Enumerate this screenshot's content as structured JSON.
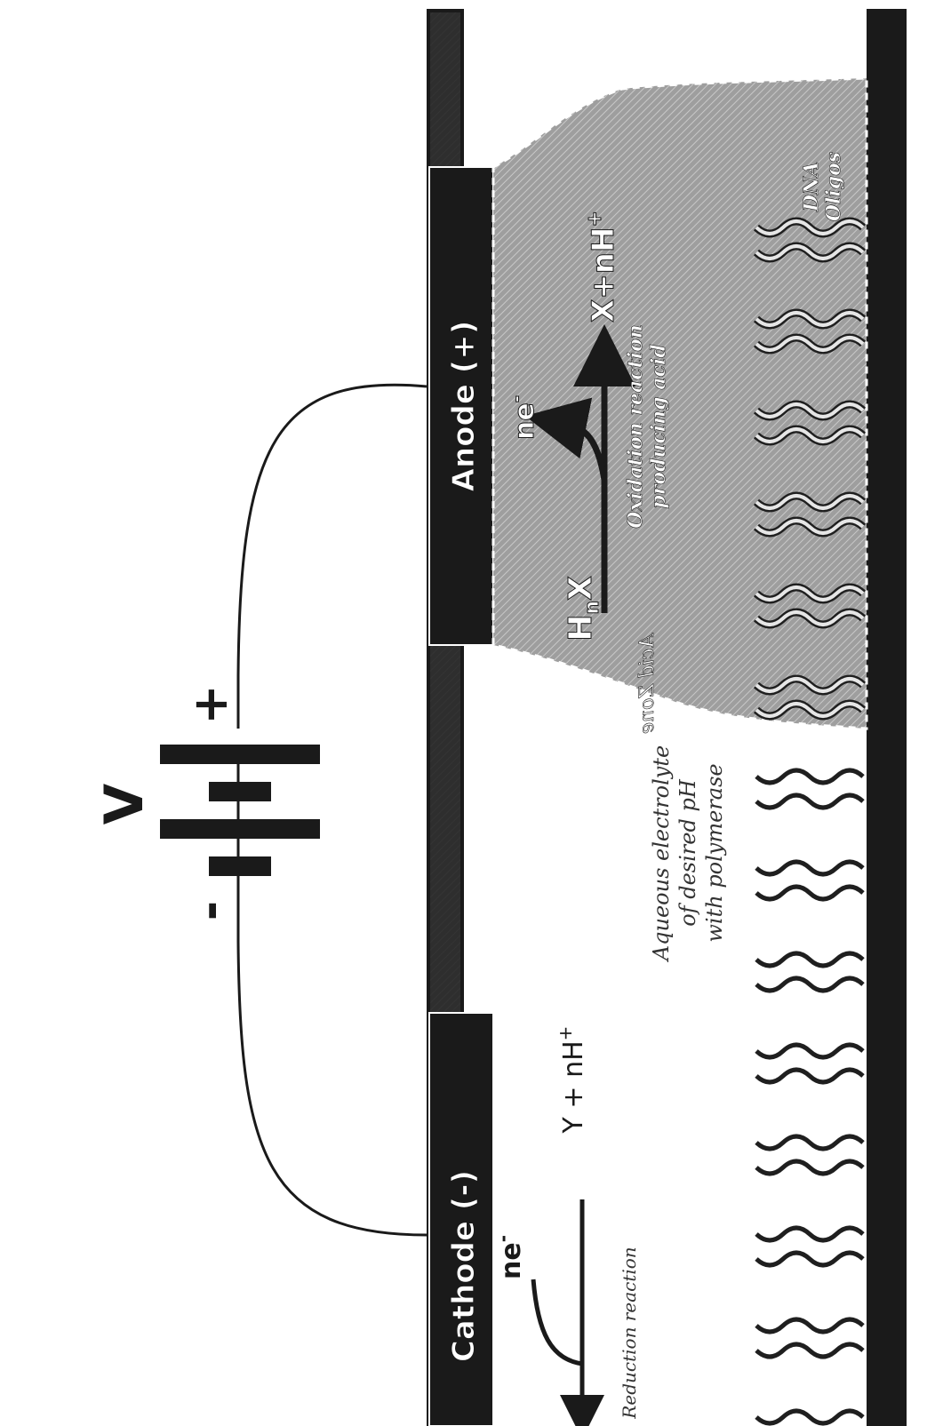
{
  "labels": {
    "voltage": "V",
    "plus": "+",
    "minus": "-",
    "anode": "Anode (+)",
    "cathode": "Cathode (-)",
    "acid_zone": "Acid Zone",
    "reactant_h": "H",
    "reactant_n": "n",
    "reactant_x": "X",
    "electrons_anode_base": "ne",
    "electrons_anode_sup": "-",
    "anode_product_base": "X+nH",
    "anode_product_sup": "+",
    "oxidation_line1": "Oxidation reaction",
    "oxidation_line2": "producing acid",
    "dna_line1": "DNA",
    "dna_line2": "Oligos",
    "electrolyte_line1": "Aqueous electrolyte",
    "electrolyte_line2": "of desired pH",
    "electrolyte_line3": "with polymerase",
    "cathode_product_base": "Y + nH",
    "cathode_product_sup": "+",
    "electrons_cathode_base": "ne",
    "electrons_cathode_sup": "-",
    "reduction": "Reduction reaction"
  },
  "colors": {
    "electrode": "#1a1a1a",
    "substrate": "#1a1a1a",
    "acid_fill": "#a9a9a9",
    "wave_light": "#e6e6e6",
    "wave_dark": "#1f1f1f",
    "wire": "#1a1a1a"
  }
}
